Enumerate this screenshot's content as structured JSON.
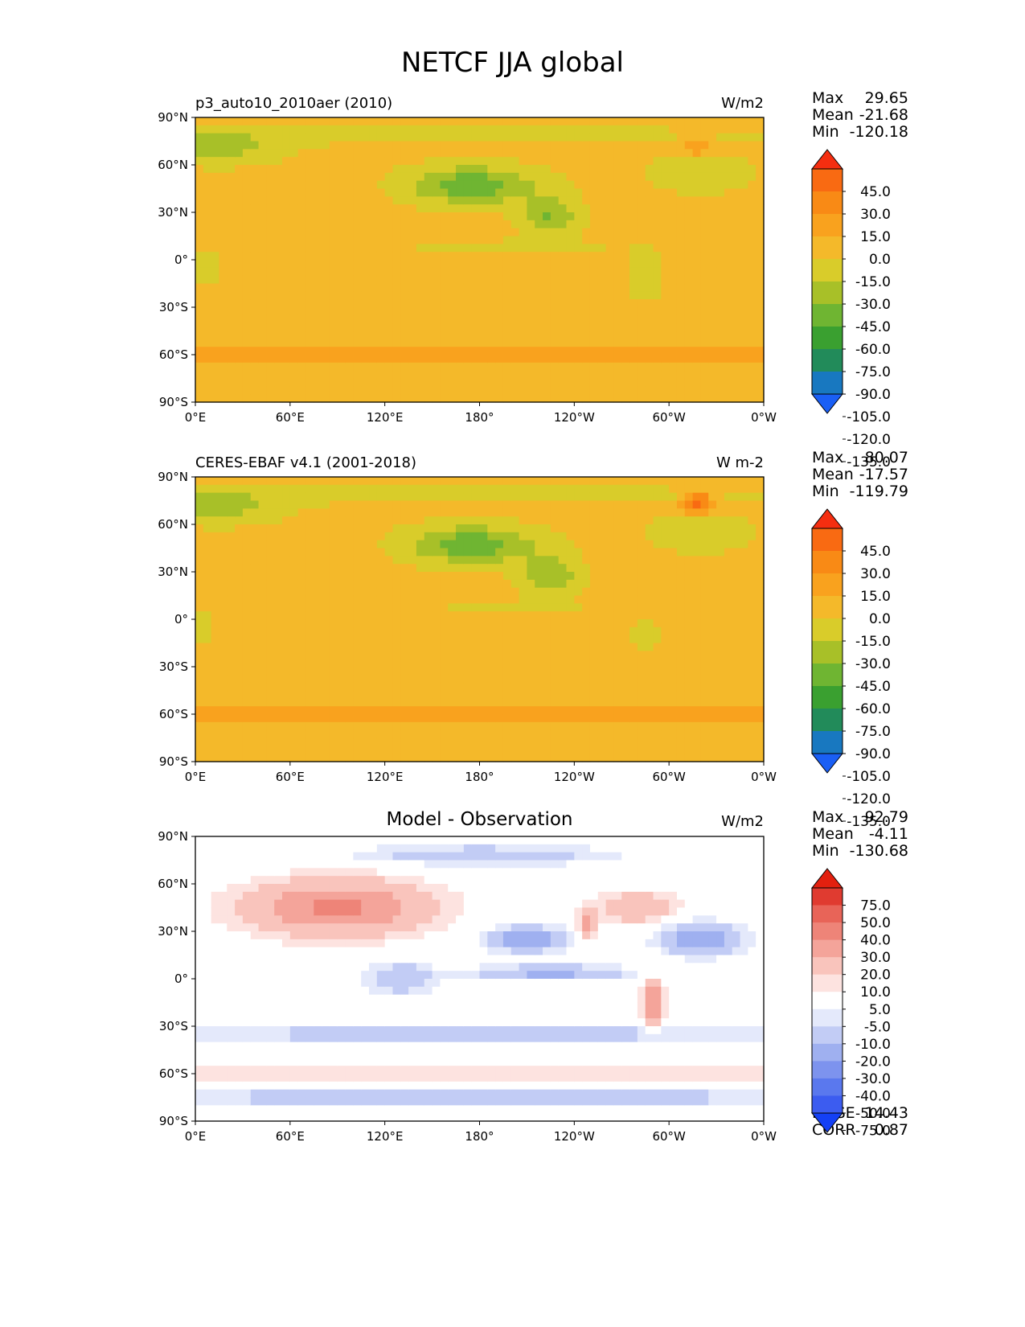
{
  "title": "NETCF JJA global",
  "colors": {
    "model_obs_palette": [
      "#1a5ff5",
      "#1878c0",
      "#228b5a",
      "#3aa030",
      "#6fb532",
      "#a8c028",
      "#d9cc2a",
      "#f4b92a",
      "#f9a21e",
      "#f98a15",
      "#f96a12",
      "#f52e10"
    ],
    "diff_palette": [
      "#1440f5",
      "#3c5cf0",
      "#5a78ee",
      "#7d93ee",
      "#9fb0f0",
      "#c2ccf5",
      "#e4e9fb",
      "#ffffff",
      "#fde3e0",
      "#f9c4bc",
      "#f4a49a",
      "#ee8478",
      "#e86458",
      "#e03b30",
      "#e3200f"
    ]
  },
  "panels": [
    {
      "title_left": "p3_auto10_2010aer (2010)",
      "title_center": "",
      "units": "W/m2",
      "stats": [
        {
          "label": "Max",
          "value": "29.65"
        },
        {
          "label": "Mean",
          "value": "-21.68"
        },
        {
          "label": "Min",
          "value": "-120.18"
        }
      ],
      "colorbar_labels": [
        "45.0",
        "30.0",
        "15.0",
        "0.0",
        "-15.0",
        "-30.0",
        "-45.0",
        "-60.0",
        "-75.0",
        "-90.0",
        "-105.0",
        "-120.0",
        "-135.0"
      ]
    },
    {
      "title_left": "CERES-EBAF v4.1 (2001-2018)",
      "title_center": "",
      "units": "W m-2",
      "stats": [
        {
          "label": "Max",
          "value": "80.07"
        },
        {
          "label": "Mean",
          "value": "-17.57"
        },
        {
          "label": "Min",
          "value": "-119.79"
        }
      ],
      "colorbar_labels": [
        "45.0",
        "30.0",
        "15.0",
        "0.0",
        "-15.0",
        "-30.0",
        "-45.0",
        "-60.0",
        "-75.0",
        "-90.0",
        "-105.0",
        "-120.0",
        "-135.0"
      ]
    },
    {
      "title_left": "",
      "title_center": "Model - Observation",
      "units": "W/m2",
      "stats": [
        {
          "label": "Max",
          "value": "92.79"
        },
        {
          "label": "Mean",
          "value": "-4.11"
        },
        {
          "label": "Min",
          "value": "-130.68"
        }
      ],
      "colorbar_labels": [
        "75.0",
        "50.0",
        "40.0",
        "30.0",
        "20.0",
        "10.0",
        "5.0",
        "-5.0",
        "-10.0",
        "-20.0",
        "-30.0",
        "-40.0",
        "-50.0",
        "-75.0"
      ],
      "extra_stats": [
        {
          "label": "RMSE",
          "value": "14.43"
        },
        {
          "label": "CORR",
          "value": "0.87"
        }
      ]
    }
  ],
  "chart_data": [
    {
      "type": "heatmap",
      "title": "p3_auto10_2010aer (2010)",
      "units": "W/m2",
      "x_ticks": [
        "0°E",
        "60°E",
        "120°E",
        "180°",
        "120°W",
        "60°W",
        "0°W"
      ],
      "y_ticks": [
        "90°N",
        "60°N",
        "30°N",
        "0°",
        "30°S",
        "60°S",
        "90°S"
      ],
      "xlim": [
        0,
        360
      ],
      "ylim": [
        -90,
        90
      ],
      "colorbar_levels": [
        -135,
        -120,
        -105,
        -90,
        -75,
        -60,
        -45,
        -30,
        -15,
        0,
        15,
        30,
        45
      ],
      "stats": {
        "max": 29.65,
        "mean": -21.68,
        "min": -120.18
      }
    },
    {
      "type": "heatmap",
      "title": "CERES-EBAF v4.1 (2001-2018)",
      "units": "W m-2",
      "x_ticks": [
        "0°E",
        "60°E",
        "120°E",
        "180°",
        "120°W",
        "60°W",
        "0°W"
      ],
      "y_ticks": [
        "90°N",
        "60°N",
        "30°N",
        "0°",
        "30°S",
        "60°S",
        "90°S"
      ],
      "xlim": [
        0,
        360
      ],
      "ylim": [
        -90,
        90
      ],
      "colorbar_levels": [
        -135,
        -120,
        -105,
        -90,
        -75,
        -60,
        -45,
        -30,
        -15,
        0,
        15,
        30,
        45
      ],
      "stats": {
        "max": 80.07,
        "mean": -17.57,
        "min": -119.79
      }
    },
    {
      "type": "heatmap",
      "title": "Model - Observation",
      "units": "W/m2",
      "x_ticks": [
        "0°E",
        "60°E",
        "120°E",
        "180°",
        "120°W",
        "60°W",
        "0°W"
      ],
      "y_ticks": [
        "90°N",
        "60°N",
        "30°N",
        "0°",
        "30°S",
        "60°S",
        "90°S"
      ],
      "xlim": [
        0,
        360
      ],
      "ylim": [
        -90,
        90
      ],
      "colorbar_levels": [
        -75,
        -50,
        -40,
        -30,
        -20,
        -10,
        -5,
        5,
        10,
        20,
        30,
        40,
        50,
        75
      ],
      "stats": {
        "max": 92.79,
        "mean": -4.11,
        "min": -130.68,
        "rmse": 14.43,
        "corr": 0.87
      }
    }
  ]
}
